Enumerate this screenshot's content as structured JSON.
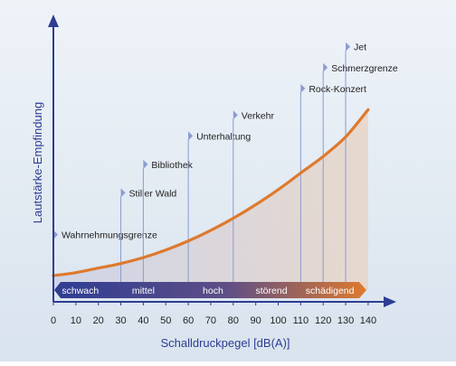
{
  "chart_data": {
    "type": "line",
    "xlabel": "Schalldruckpegel [dB(A)]",
    "ylabel": "Lautstärke-Empfindung",
    "x_ticks": [
      0,
      10,
      20,
      30,
      40,
      50,
      60,
      70,
      80,
      90,
      100,
      110,
      120,
      130,
      140
    ],
    "xlim": [
      0,
      140
    ],
    "curve": {
      "x": [
        0,
        10,
        20,
        30,
        40,
        50,
        60,
        70,
        80,
        90,
        100,
        110,
        120,
        130,
        140
      ],
      "y": [
        0.0,
        0.02,
        0.05,
        0.08,
        0.12,
        0.17,
        0.23,
        0.3,
        0.38,
        0.47,
        0.57,
        0.68,
        0.79,
        0.92,
        1.1
      ]
    },
    "annotations": [
      {
        "x": 0,
        "label": "Wahrnehmungsgrenze",
        "level": 0.24
      },
      {
        "x": 30,
        "label": "Stiller Wald",
        "level": 0.46
      },
      {
        "x": 40,
        "label": "Bibliothek",
        "level": 0.61
      },
      {
        "x": 60,
        "label": "Unterhaltung",
        "level": 0.76
      },
      {
        "x": 80,
        "label": "Verkehr",
        "level": 0.87
      },
      {
        "x": 110,
        "label": "Rock-Konzert",
        "level": 1.01
      },
      {
        "x": 120,
        "label": "Schmerzgrenze",
        "level": 1.12
      },
      {
        "x": 130,
        "label": "Jet",
        "level": 1.23
      }
    ],
    "bands": [
      {
        "label": "schwach",
        "x": 12
      },
      {
        "label": "mittel",
        "x": 40
      },
      {
        "label": "hoch",
        "x": 71
      },
      {
        "label": "störend",
        "x": 97
      },
      {
        "label": "schädigend",
        "x": 123
      }
    ],
    "colors": {
      "axis": "#2e3d93",
      "curve": "#dd7a2e",
      "marker": "#8b9bd3",
      "band_start": "#2e3d93",
      "band_end": "#dd7a2e",
      "label": "#222222",
      "background": "#e6edf5"
    }
  }
}
